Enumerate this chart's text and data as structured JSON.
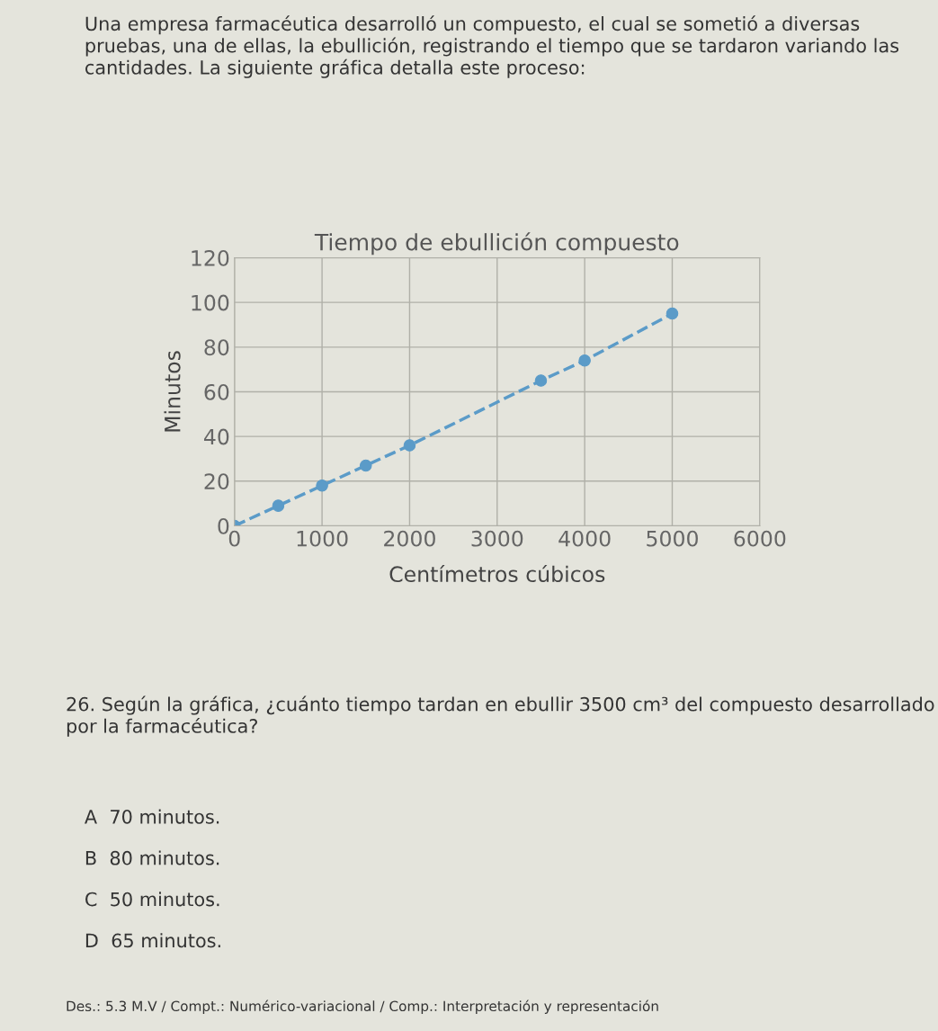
{
  "chart_data": {
    "type": "line",
    "title": "Tiempo de ebullición compuesto",
    "xlabel": "Centímetros cúbicos",
    "ylabel": "Minutos",
    "x": [
      0,
      500,
      1000,
      1500,
      2000,
      3500,
      4000,
      5000
    ],
    "series": [
      {
        "color": "#5b9bc8",
        "values": [
          0,
          9,
          18,
          27,
          36,
          65,
          74,
          95
        ]
      }
    ],
    "xlim": [
      0,
      6000
    ],
    "xticks": [
      0,
      1000,
      2000,
      3000,
      4000,
      5000,
      6000
    ],
    "ylim": [
      0,
      120
    ],
    "yticks": [
      0,
      20,
      40,
      60,
      80,
      100,
      120
    ],
    "grid": true,
    "marker": "circle",
    "line_style": "dashed",
    "annotations": [
      "Una empresa farmacéutica desarrolló un compuesto, el cual se sometió a diversas pruebas, una de ellas, la ebullición, registrando el tiempo que se tardaron variando las cantidades. La siguiente gráfica detalla este proceso:",
      "26. Según la gráfica, ¿cuánto tiempo tardan en ebullir 3500 cm³ del compuesto desarrollado por la farmacéutica?",
      "A  70 minutos.",
      "B  80 minutos.",
      "C  50 minutos.",
      "D  65 minutos.",
      "Des.: 5.3 M.V / Compt.: Numérico-variacional / Comp.: Interpretación y representación"
    ]
  }
}
